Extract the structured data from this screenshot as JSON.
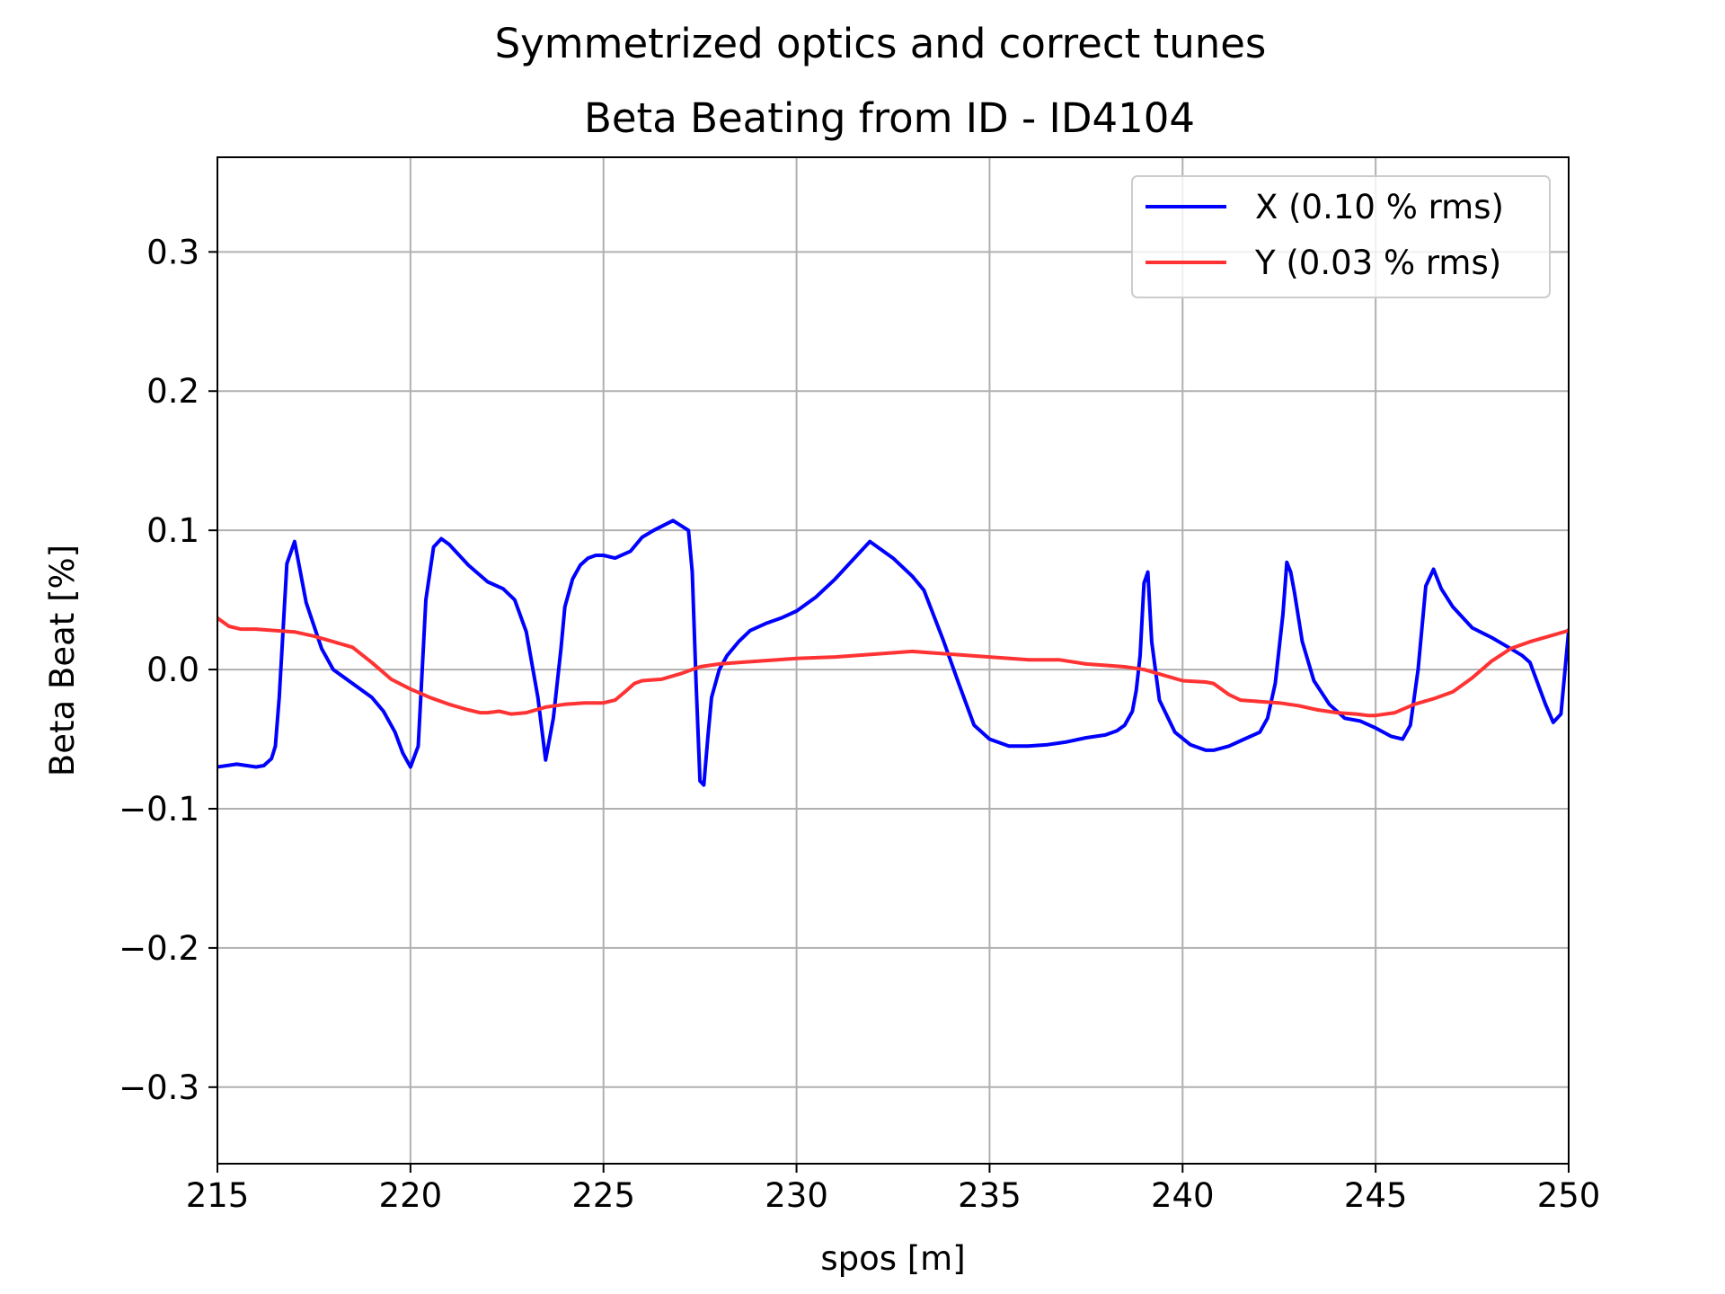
{
  "chart_data": {
    "type": "line",
    "suptitle": "Symmetrized optics and correct tunes",
    "title": "Beta Beating from ID - ID4104",
    "xlabel": "spos [m]",
    "ylabel": "Beta Beat [%]",
    "xlim": [
      215,
      250
    ],
    "ylim": [
      -0.355,
      0.368
    ],
    "xticks": [
      215,
      220,
      225,
      230,
      235,
      240,
      245,
      250
    ],
    "yticks": [
      -0.3,
      -0.2,
      -0.1,
      0.0,
      0.1,
      0.2,
      0.3
    ],
    "ytick_labels": [
      "−0.3",
      "−0.2",
      "−0.1",
      "0.0",
      "0.1",
      "0.2",
      "0.3"
    ],
    "grid": true,
    "legend_position": "top-right",
    "series": [
      {
        "name": "X (0.10 % rms)",
        "color": "#0000ff",
        "x": [
          215.0,
          215.5,
          216.0,
          216.2,
          216.4,
          216.5,
          216.6,
          216.8,
          217.0,
          217.3,
          217.7,
          218.0,
          218.5,
          219.0,
          219.3,
          219.6,
          219.8,
          220.0,
          220.2,
          220.4,
          220.6,
          220.8,
          221.0,
          221.5,
          222.0,
          222.4,
          222.7,
          223.0,
          223.3,
          223.5,
          223.7,
          223.9,
          224.0,
          224.2,
          224.4,
          224.6,
          224.8,
          225.0,
          225.3,
          225.7,
          226.0,
          226.3,
          226.8,
          227.2,
          227.3,
          227.4,
          227.5,
          227.6,
          227.7,
          227.8,
          228.0,
          228.2,
          228.5,
          228.8,
          229.2,
          229.6,
          230.0,
          230.5,
          231.0,
          231.5,
          231.9,
          232.5,
          233.0,
          233.3,
          233.8,
          234.2,
          234.6,
          235.0,
          235.5,
          236.0,
          236.5,
          237.0,
          237.5,
          238.0,
          238.3,
          238.5,
          238.7,
          238.8,
          238.9,
          239.0,
          239.1,
          239.2,
          239.4,
          239.8,
          240.2,
          240.6,
          240.8,
          241.2,
          241.6,
          242.0,
          242.2,
          242.4,
          242.6,
          242.7,
          242.8,
          242.9,
          243.1,
          243.4,
          243.8,
          244.2,
          244.6,
          245.0,
          245.4,
          245.7,
          245.9,
          246.1,
          246.3,
          246.5,
          246.7,
          247.0,
          247.5,
          248.0,
          248.5,
          248.8,
          249.0,
          249.2,
          249.4,
          249.6,
          249.8,
          250.0
        ],
        "y": [
          -0.07,
          -0.068,
          -0.07,
          -0.069,
          -0.064,
          -0.055,
          -0.02,
          0.076,
          0.092,
          0.048,
          0.015,
          0.0,
          -0.01,
          -0.02,
          -0.03,
          -0.045,
          -0.06,
          -0.07,
          -0.055,
          0.05,
          0.088,
          0.094,
          0.09,
          0.075,
          0.063,
          0.058,
          0.05,
          0.027,
          -0.02,
          -0.065,
          -0.035,
          0.015,
          0.045,
          0.065,
          0.075,
          0.08,
          0.082,
          0.082,
          0.08,
          0.085,
          0.095,
          0.1,
          0.107,
          0.1,
          0.07,
          -0.01,
          -0.08,
          -0.083,
          -0.05,
          -0.02,
          0.0,
          0.01,
          0.02,
          0.028,
          0.033,
          0.037,
          0.042,
          0.052,
          0.065,
          0.08,
          0.092,
          0.08,
          0.067,
          0.057,
          0.021,
          -0.01,
          -0.04,
          -0.05,
          -0.055,
          -0.055,
          -0.054,
          -0.052,
          -0.049,
          -0.047,
          -0.044,
          -0.04,
          -0.03,
          -0.015,
          0.01,
          0.062,
          0.07,
          0.02,
          -0.022,
          -0.045,
          -0.054,
          -0.058,
          -0.058,
          -0.055,
          -0.05,
          -0.045,
          -0.035,
          -0.01,
          0.04,
          0.077,
          0.07,
          0.055,
          0.02,
          -0.008,
          -0.025,
          -0.035,
          -0.037,
          -0.042,
          -0.048,
          -0.05,
          -0.04,
          0.0,
          0.06,
          0.072,
          0.058,
          0.045,
          0.03,
          0.023,
          0.015,
          0.01,
          0.005,
          -0.01,
          -0.025,
          -0.038,
          -0.032,
          0.028
        ]
      },
      {
        "name": "Y (0.03 % rms)",
        "color": "#ff3333",
        "x": [
          215.0,
          215.3,
          215.6,
          216.0,
          216.5,
          217.0,
          217.5,
          218.0,
          218.5,
          219.0,
          219.5,
          220.0,
          220.5,
          221.0,
          221.5,
          221.8,
          222.0,
          222.3,
          222.6,
          223.0,
          223.5,
          224.0,
          224.5,
          225.0,
          225.3,
          225.6,
          225.8,
          226.0,
          226.5,
          227.0,
          227.5,
          228.0,
          228.5,
          229.0,
          229.5,
          230.0,
          231.0,
          232.0,
          233.0,
          233.5,
          234.0,
          235.0,
          236.0,
          236.8,
          237.5,
          238.0,
          238.5,
          239.0,
          239.5,
          240.0,
          240.6,
          240.8,
          241.2,
          241.5,
          242.0,
          242.5,
          243.0,
          243.5,
          244.0,
          244.5,
          244.8,
          245.0,
          245.5,
          246.0,
          246.5,
          247.0,
          247.5,
          248.0,
          248.5,
          249.0,
          249.5,
          250.0
        ],
        "y": [
          0.037,
          0.031,
          0.029,
          0.029,
          0.028,
          0.027,
          0.024,
          0.02,
          0.016,
          0.005,
          -0.007,
          -0.014,
          -0.02,
          -0.025,
          -0.029,
          -0.031,
          -0.031,
          -0.03,
          -0.032,
          -0.031,
          -0.027,
          -0.025,
          -0.024,
          -0.024,
          -0.022,
          -0.015,
          -0.01,
          -0.008,
          -0.007,
          -0.003,
          0.002,
          0.004,
          0.005,
          0.006,
          0.007,
          0.008,
          0.009,
          0.011,
          0.013,
          0.012,
          0.011,
          0.009,
          0.007,
          0.007,
          0.004,
          0.003,
          0.002,
          0.0,
          -0.004,
          -0.008,
          -0.009,
          -0.01,
          -0.018,
          -0.022,
          -0.023,
          -0.024,
          -0.026,
          -0.029,
          -0.031,
          -0.032,
          -0.033,
          -0.033,
          -0.031,
          -0.025,
          -0.021,
          -0.016,
          -0.006,
          0.006,
          0.015,
          0.02,
          0.024,
          0.028
        ]
      }
    ]
  }
}
